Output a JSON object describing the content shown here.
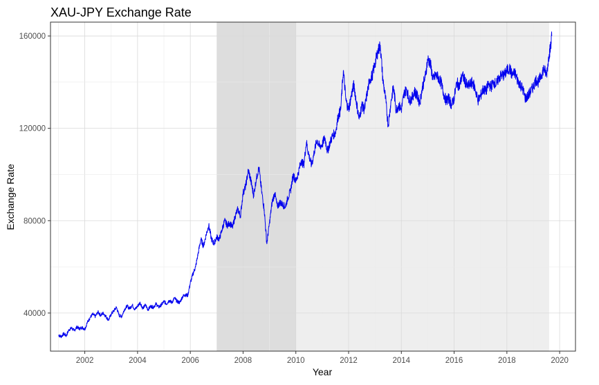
{
  "chart_data": {
    "type": "line",
    "title": "XAU-JPY Exchange Rate",
    "xlabel": "Year",
    "ylabel": "Exchange Rate",
    "xlim": [
      2000.7,
      2020.6
    ],
    "ylim": [
      23500,
      166000
    ],
    "x_ticks": [
      2002,
      2004,
      2006,
      2008,
      2010,
      2012,
      2014,
      2016,
      2018,
      2020
    ],
    "x_tick_labels": [
      "2002",
      "2004",
      "2006",
      "2008",
      "2010",
      "2012",
      "2014",
      "2016",
      "2018",
      "2020"
    ],
    "y_ticks": [
      40000,
      80000,
      120000,
      160000
    ],
    "y_tick_labels": [
      "40000",
      "80000",
      "120000",
      "160000"
    ],
    "grid": true,
    "shaded_regions": [
      {
        "x_start": 2007.0,
        "x_end": 2010.0,
        "color": "#dddddd"
      },
      {
        "x_start": 2010.0,
        "x_end": 2019.6,
        "color": "#eeeeee"
      }
    ],
    "series": [
      {
        "color": "#0000ee",
        "points": [
          [
            2001.0,
            30500
          ],
          [
            2001.1,
            29800
          ],
          [
            2001.2,
            31000
          ],
          [
            2001.3,
            30200
          ],
          [
            2001.4,
            32800
          ],
          [
            2001.5,
            33500
          ],
          [
            2001.6,
            32400
          ],
          [
            2001.7,
            34000
          ],
          [
            2001.8,
            33200
          ],
          [
            2001.9,
            33800
          ],
          [
            2002.0,
            33000
          ],
          [
            2002.1,
            36000
          ],
          [
            2002.2,
            38000
          ],
          [
            2002.3,
            39500
          ],
          [
            2002.4,
            38500
          ],
          [
            2002.5,
            40500
          ],
          [
            2002.6,
            39000
          ],
          [
            2002.7,
            40000
          ],
          [
            2002.8,
            38500
          ],
          [
            2002.9,
            37000
          ],
          [
            2003.0,
            39500
          ],
          [
            2003.1,
            41000
          ],
          [
            2003.2,
            42500
          ],
          [
            2003.3,
            39000
          ],
          [
            2003.4,
            38500
          ],
          [
            2003.5,
            41500
          ],
          [
            2003.6,
            43000
          ],
          [
            2003.7,
            42000
          ],
          [
            2003.8,
            43500
          ],
          [
            2003.9,
            41500
          ],
          [
            2004.0,
            43000
          ],
          [
            2004.1,
            44500
          ],
          [
            2004.2,
            42000
          ],
          [
            2004.3,
            43500
          ],
          [
            2004.4,
            41500
          ],
          [
            2004.5,
            43000
          ],
          [
            2004.6,
            42500
          ],
          [
            2004.7,
            44000
          ],
          [
            2004.8,
            42500
          ],
          [
            2004.9,
            43500
          ],
          [
            2005.0,
            45000
          ],
          [
            2005.1,
            44000
          ],
          [
            2005.2,
            45500
          ],
          [
            2005.3,
            44500
          ],
          [
            2005.4,
            46500
          ],
          [
            2005.5,
            45000
          ],
          [
            2005.6,
            44500
          ],
          [
            2005.7,
            47000
          ],
          [
            2005.8,
            48000
          ],
          [
            2005.9,
            47500
          ],
          [
            2006.0,
            53000
          ],
          [
            2006.1,
            57000
          ],
          [
            2006.2,
            60000
          ],
          [
            2006.3,
            66000
          ],
          [
            2006.4,
            72000
          ],
          [
            2006.5,
            69000
          ],
          [
            2006.6,
            74000
          ],
          [
            2006.7,
            78000
          ],
          [
            2006.8,
            72000
          ],
          [
            2006.9,
            70000
          ],
          [
            2007.0,
            73000
          ],
          [
            2007.1,
            72000
          ],
          [
            2007.2,
            76000
          ],
          [
            2007.3,
            80000
          ],
          [
            2007.4,
            78000
          ],
          [
            2007.5,
            79000
          ],
          [
            2007.6,
            77000
          ],
          [
            2007.7,
            82000
          ],
          [
            2007.8,
            85000
          ],
          [
            2007.9,
            82000
          ],
          [
            2008.0,
            92000
          ],
          [
            2008.1,
            95000
          ],
          [
            2008.2,
            102000
          ],
          [
            2008.3,
            97000
          ],
          [
            2008.4,
            91000
          ],
          [
            2008.5,
            98000
          ],
          [
            2008.6,
            103000
          ],
          [
            2008.7,
            93000
          ],
          [
            2008.8,
            85000
          ],
          [
            2008.9,
            70000
          ],
          [
            2009.0,
            79000
          ],
          [
            2009.1,
            88000
          ],
          [
            2009.2,
            92000
          ],
          [
            2009.3,
            86000
          ],
          [
            2009.4,
            88000
          ],
          [
            2009.5,
            87000
          ],
          [
            2009.6,
            86000
          ],
          [
            2009.7,
            90000
          ],
          [
            2009.8,
            93000
          ],
          [
            2009.9,
            100000
          ],
          [
            2010.0,
            97000
          ],
          [
            2010.1,
            101000
          ],
          [
            2010.2,
            106000
          ],
          [
            2010.3,
            104000
          ],
          [
            2010.4,
            114000
          ],
          [
            2010.5,
            108000
          ],
          [
            2010.6,
            104000
          ],
          [
            2010.7,
            110000
          ],
          [
            2010.8,
            115000
          ],
          [
            2010.9,
            112000
          ],
          [
            2011.0,
            113000
          ],
          [
            2011.1,
            116000
          ],
          [
            2011.2,
            110000
          ],
          [
            2011.3,
            114000
          ],
          [
            2011.4,
            117000
          ],
          [
            2011.5,
            118000
          ],
          [
            2011.6,
            125000
          ],
          [
            2011.7,
            128000
          ],
          [
            2011.8,
            145000
          ],
          [
            2011.9,
            132000
          ],
          [
            2012.0,
            128000
          ],
          [
            2012.1,
            134000
          ],
          [
            2012.2,
            139000
          ],
          [
            2012.3,
            131000
          ],
          [
            2012.4,
            124000
          ],
          [
            2012.5,
            130000
          ],
          [
            2012.6,
            128000
          ],
          [
            2012.7,
            135000
          ],
          [
            2012.8,
            141000
          ],
          [
            2012.9,
            143000
          ],
          [
            2013.0,
            148000
          ],
          [
            2013.1,
            153000
          ],
          [
            2013.2,
            156000
          ],
          [
            2013.3,
            141000
          ],
          [
            2013.4,
            133000
          ],
          [
            2013.5,
            121000
          ],
          [
            2013.6,
            131000
          ],
          [
            2013.7,
            138000
          ],
          [
            2013.8,
            128000
          ],
          [
            2013.9,
            130000
          ],
          [
            2014.0,
            128000
          ],
          [
            2014.1,
            135000
          ],
          [
            2014.2,
            137000
          ],
          [
            2014.3,
            132000
          ],
          [
            2014.4,
            133000
          ],
          [
            2014.5,
            136000
          ],
          [
            2014.6,
            134000
          ],
          [
            2014.7,
            131000
          ],
          [
            2014.8,
            138000
          ],
          [
            2014.9,
            142000
          ],
          [
            2015.0,
            150000
          ],
          [
            2015.1,
            148000
          ],
          [
            2015.2,
            141000
          ],
          [
            2015.3,
            143000
          ],
          [
            2015.4,
            142000
          ],
          [
            2015.5,
            140000
          ],
          [
            2015.6,
            135000
          ],
          [
            2015.7,
            132000
          ],
          [
            2015.8,
            133000
          ],
          [
            2015.9,
            130000
          ],
          [
            2016.0,
            133000
          ],
          [
            2016.1,
            140000
          ],
          [
            2016.2,
            138000
          ],
          [
            2016.3,
            143000
          ],
          [
            2016.4,
            141000
          ],
          [
            2016.5,
            138000
          ],
          [
            2016.6,
            139000
          ],
          [
            2016.7,
            140000
          ],
          [
            2016.8,
            137000
          ],
          [
            2016.9,
            132000
          ],
          [
            2017.0,
            134000
          ],
          [
            2017.1,
            137000
          ],
          [
            2017.2,
            136000
          ],
          [
            2017.3,
            139000
          ],
          [
            2017.4,
            138000
          ],
          [
            2017.5,
            140000
          ],
          [
            2017.6,
            139000
          ],
          [
            2017.7,
            142000
          ],
          [
            2017.8,
            143000
          ],
          [
            2017.9,
            143000
          ],
          [
            2018.0,
            145000
          ],
          [
            2018.1,
            146000
          ],
          [
            2018.2,
            143000
          ],
          [
            2018.3,
            144000
          ],
          [
            2018.4,
            141000
          ],
          [
            2018.5,
            139000
          ],
          [
            2018.6,
            137000
          ],
          [
            2018.7,
            133000
          ],
          [
            2018.8,
            134000
          ],
          [
            2018.9,
            136000
          ],
          [
            2019.0,
            138000
          ],
          [
            2019.1,
            141000
          ],
          [
            2019.2,
            140000
          ],
          [
            2019.3,
            143000
          ],
          [
            2019.4,
            146000
          ],
          [
            2019.5,
            143000
          ],
          [
            2019.6,
            152000
          ],
          [
            2019.65,
            155000
          ],
          [
            2019.7,
            160000
          ]
        ]
      }
    ]
  }
}
